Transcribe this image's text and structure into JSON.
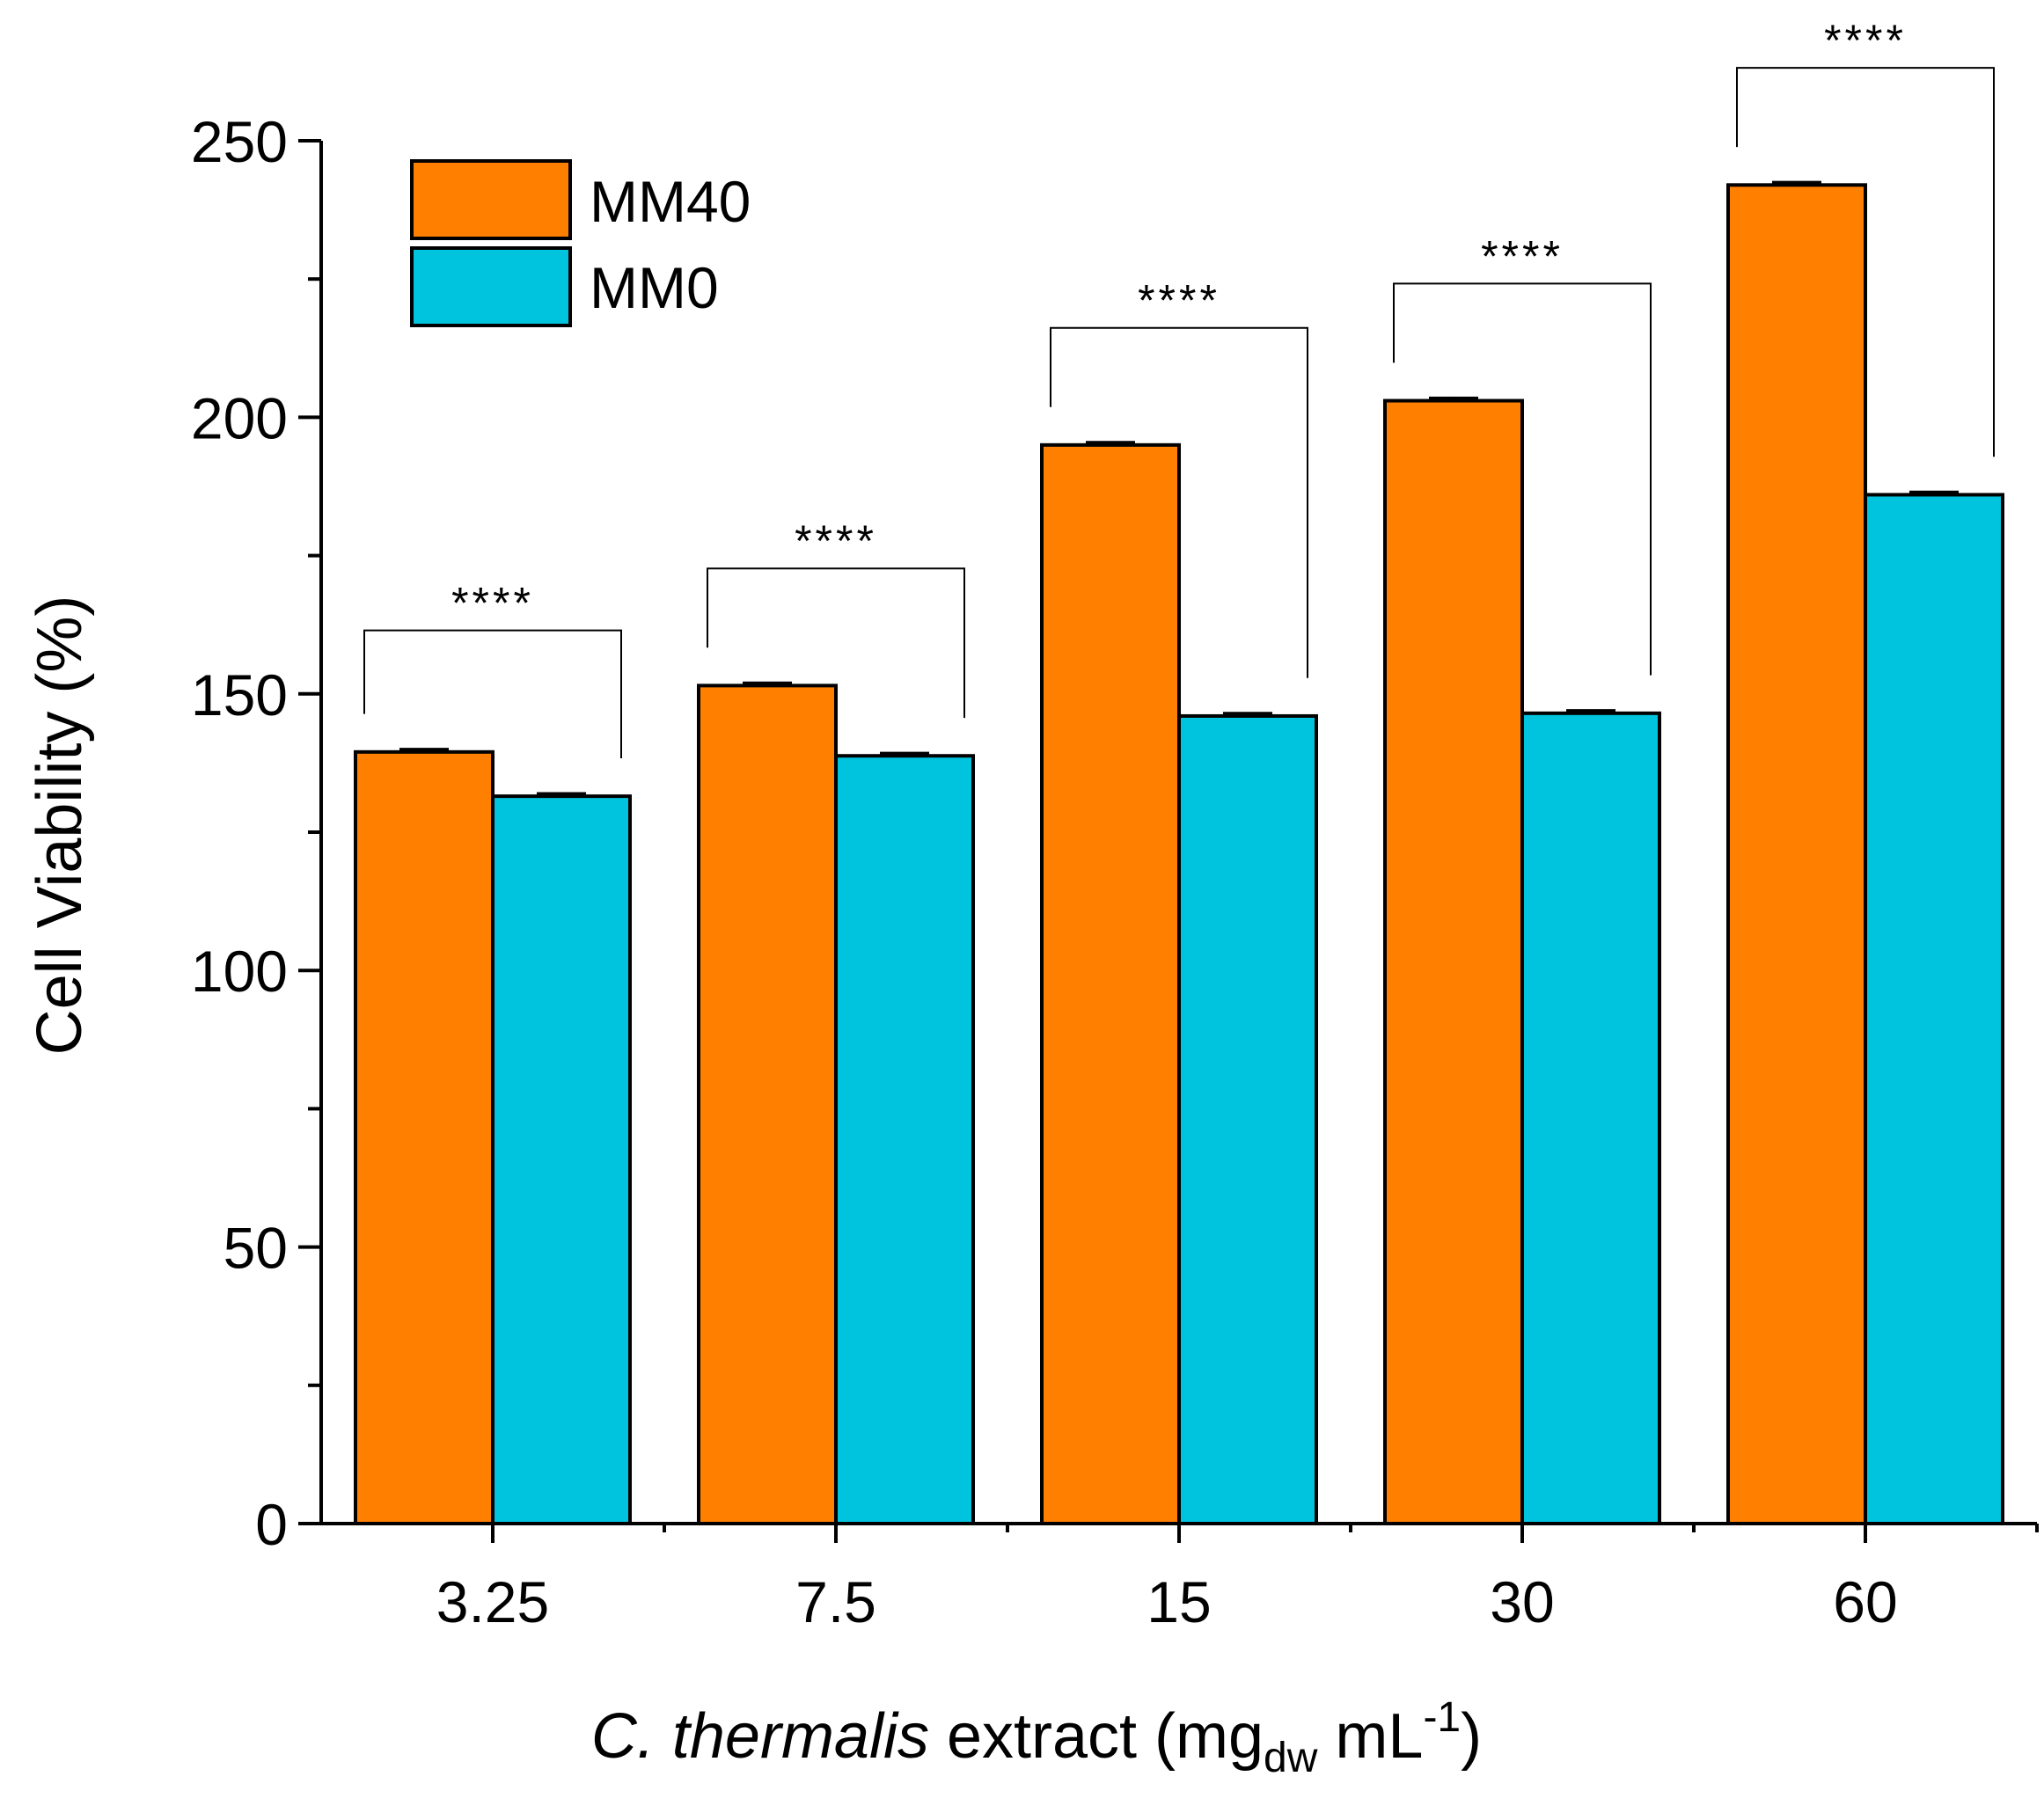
{
  "chart_data": {
    "type": "bar",
    "categories": [
      "3.25",
      "7.5",
      "15",
      "30",
      "60"
    ],
    "series": [
      {
        "name": "MM40",
        "color": "#FF8000",
        "values": [
          139.5,
          151.5,
          195,
          203,
          242
        ],
        "errors": [
          0.5,
          0.5,
          0.5,
          0.5,
          0.5
        ]
      },
      {
        "name": "MM0",
        "color": "#00C3DE",
        "values": [
          131.5,
          138.8,
          146,
          146.5,
          186
        ],
        "errors": [
          0.5,
          0.5,
          0.5,
          0.5,
          0.5
        ]
      }
    ],
    "significance": [
      "****",
      "****",
      "****",
      "****",
      "****"
    ],
    "ylabel": "Cell Viability (%)",
    "xlabel": {
      "italic": "C. thermalis",
      "rest": " extract (mg",
      "subscript": "dw",
      "unit": " mL",
      "superscript": "-1",
      "close": ")"
    },
    "ylim": [
      0,
      250
    ],
    "yticks": [
      0,
      50,
      100,
      150,
      200,
      250
    ],
    "legend": "top-left",
    "grid": false
  }
}
